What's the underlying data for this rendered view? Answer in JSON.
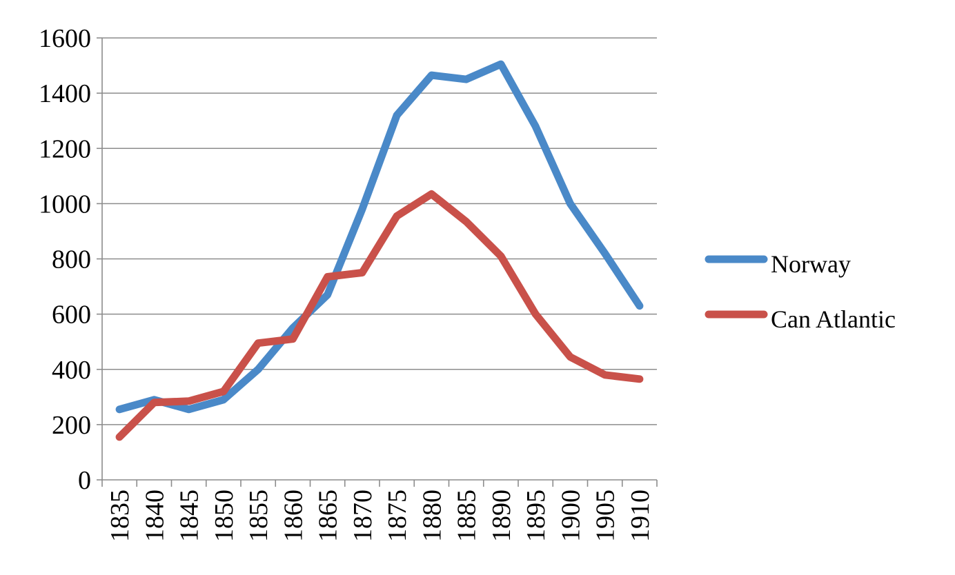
{
  "chart_data": {
    "type": "line",
    "title": "",
    "xlabel": "",
    "ylabel": "",
    "x": [
      "1835",
      "1840",
      "1845",
      "1850",
      "1855",
      "1860",
      "1865",
      "1870",
      "1875",
      "1880",
      "1885",
      "1890",
      "1895",
      "1900",
      "1905",
      "1910"
    ],
    "ylim": [
      0,
      1600
    ],
    "yticks": [
      "0",
      "200",
      "400",
      "600",
      "800",
      "1000",
      "1200",
      "1400",
      "1600"
    ],
    "grid": true,
    "legend_position": "right",
    "series": [
      {
        "name": "Norway",
        "color": "#4a89c8",
        "values": [
          255,
          290,
          255,
          290,
          400,
          550,
          670,
          980,
          1320,
          1465,
          1450,
          1505,
          1280,
          1000,
          820,
          630
        ]
      },
      {
        "name": "Can Atlantic",
        "color": "#c9514a",
        "values": [
          155,
          280,
          285,
          320,
          495,
          510,
          735,
          750,
          955,
          1035,
          935,
          810,
          600,
          445,
          380,
          365
        ]
      }
    ]
  }
}
